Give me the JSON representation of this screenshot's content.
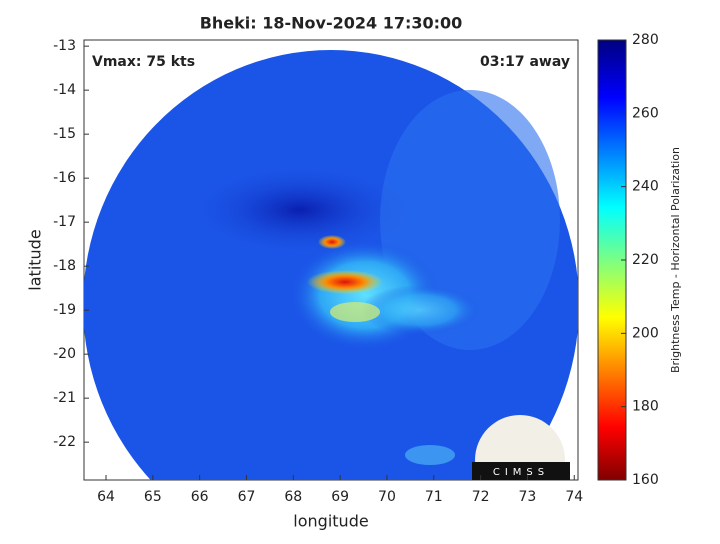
{
  "title": "Bheki: 18-Nov-2024 17:30:00",
  "annotations": {
    "vmax": "Vmax: 75 kts",
    "time_away": "03:17 away"
  },
  "x_axis": {
    "label": "longitude",
    "lim": [
      63.53,
      74.08
    ],
    "ticks": [
      64,
      65,
      66,
      67,
      68,
      69,
      70,
      71,
      72,
      73,
      74
    ]
  },
  "y_axis": {
    "label": "latitude",
    "lim": [
      -22.86,
      -12.86
    ],
    "ticks": [
      -13,
      -14,
      -15,
      -16,
      -17,
      -18,
      -19,
      -20,
      -21,
      -22
    ]
  },
  "colorbar": {
    "label": "Brightness Temp - Horizontal Polarization",
    "lim": [
      160,
      280
    ],
    "ticks": [
      160,
      180,
      200,
      220,
      240,
      260,
      280
    ]
  },
  "logo": "CIMSS"
}
